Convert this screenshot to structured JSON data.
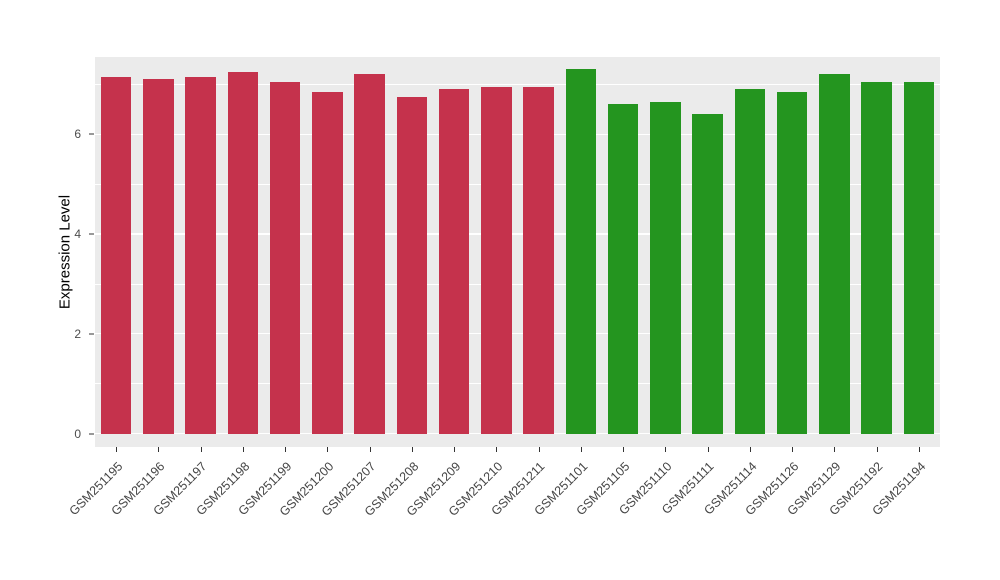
{
  "chart_data": {
    "type": "bar",
    "title": "",
    "xlabel": "",
    "ylabel": "Expression Level",
    "ylim": [
      -0.27,
      7.55
    ],
    "yticks": [
      0,
      2,
      4,
      6
    ],
    "yticks_minor": [
      1,
      3,
      5,
      7
    ],
    "grid": "on",
    "legend": "none",
    "plot_background": "#EBEBEB",
    "gridline_color": "#FFFFFF",
    "categories": [
      "GSM251195",
      "GSM251196",
      "GSM251197",
      "GSM251198",
      "GSM251199",
      "GSM251200",
      "GSM251207",
      "GSM251208",
      "GSM251209",
      "GSM251210",
      "GSM251211",
      "GSM251101",
      "GSM251105",
      "GSM251110",
      "GSM251111",
      "GSM251114",
      "GSM251126",
      "GSM251129",
      "GSM251192",
      "GSM251194"
    ],
    "values": [
      7.15,
      7.1,
      7.15,
      7.25,
      7.05,
      6.85,
      7.2,
      6.75,
      6.9,
      6.95,
      6.95,
      7.3,
      6.6,
      6.65,
      6.4,
      6.9,
      6.85,
      7.2,
      7.05,
      7.05
    ],
    "bar_groups": [
      "red",
      "red",
      "red",
      "red",
      "red",
      "red",
      "red",
      "red",
      "red",
      "red",
      "red",
      "green",
      "green",
      "green",
      "green",
      "green",
      "green",
      "green",
      "green",
      "green"
    ],
    "group_colors": {
      "red": "#C5324C",
      "green": "#24951F"
    }
  }
}
